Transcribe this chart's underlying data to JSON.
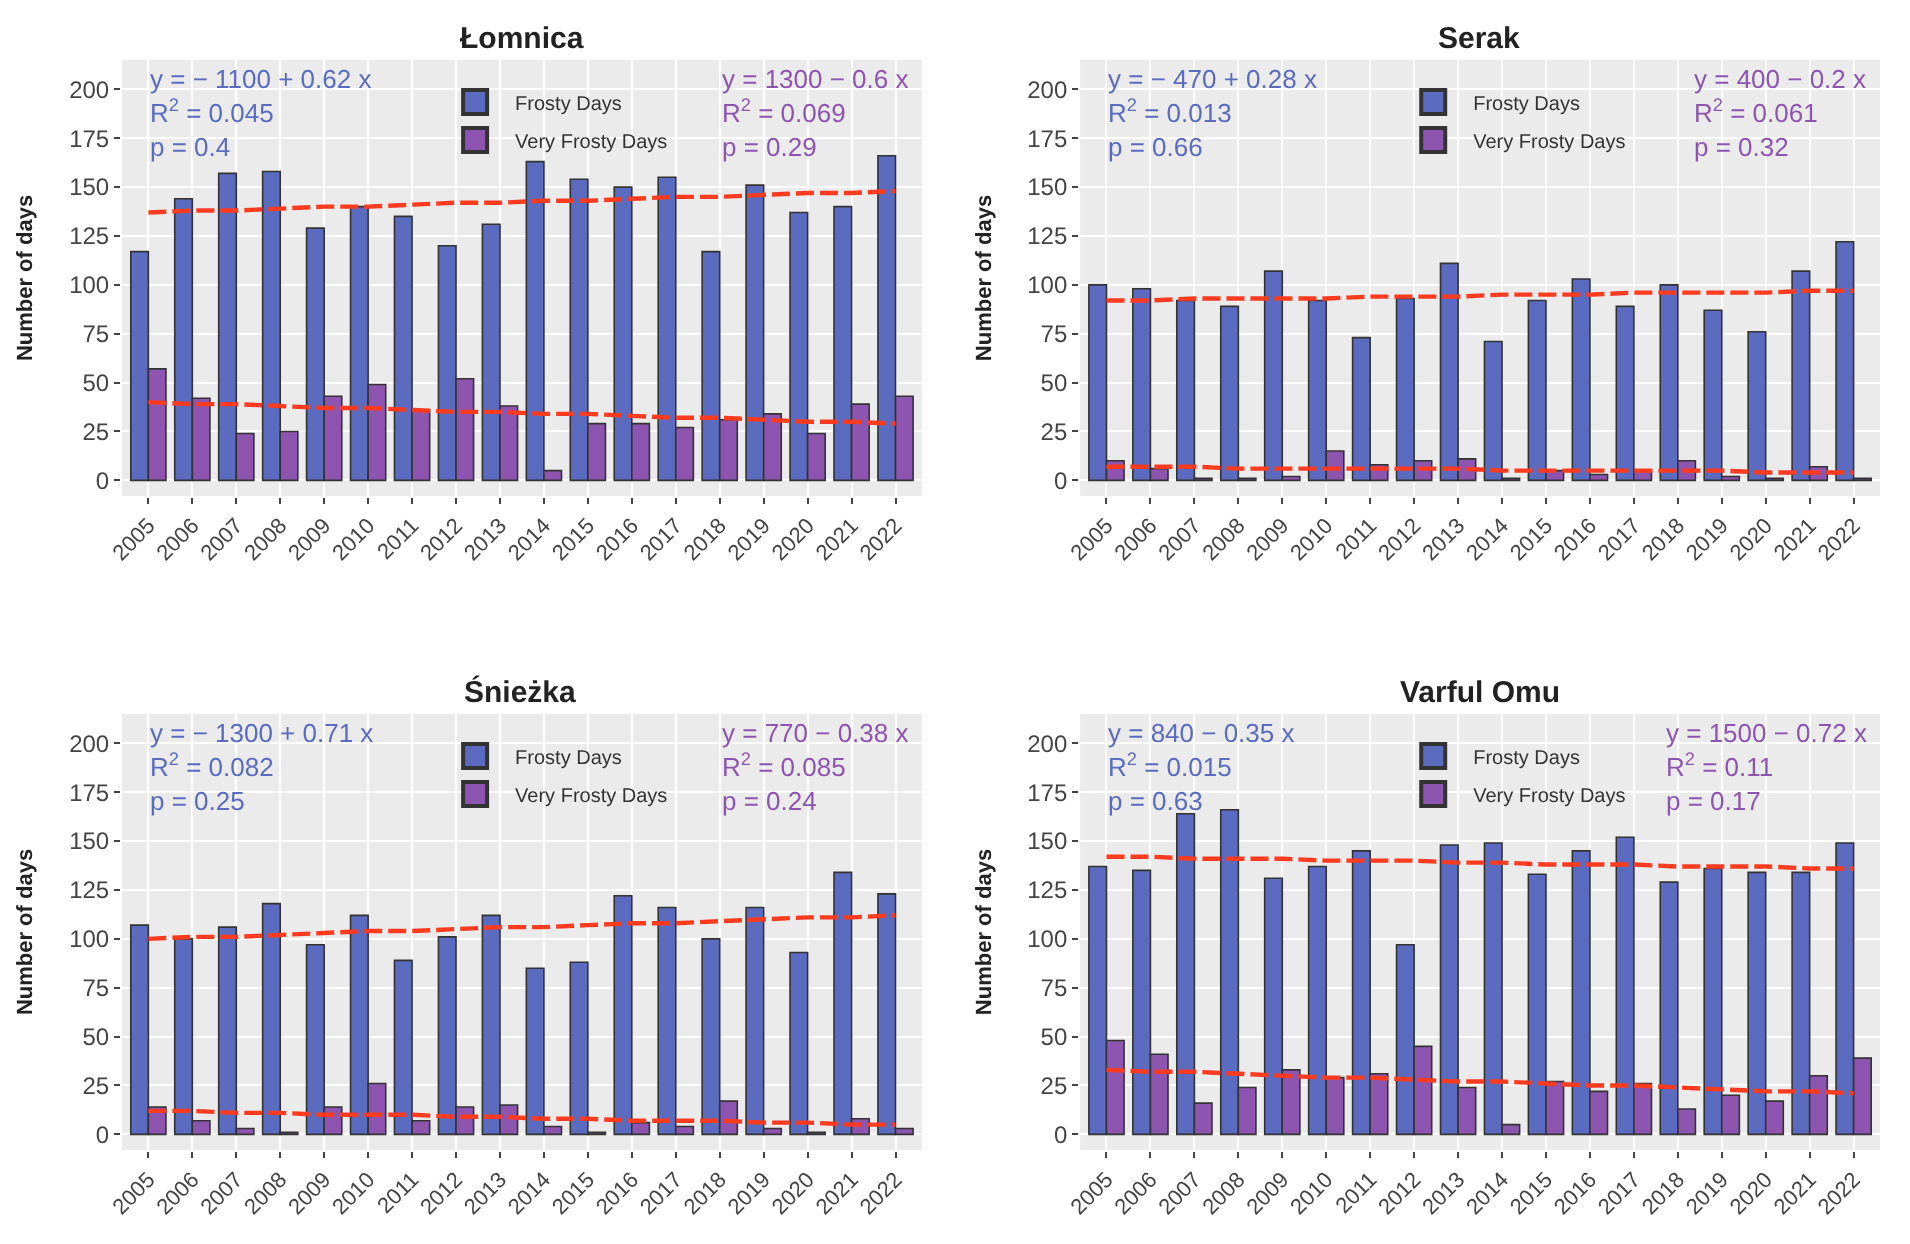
{
  "chart_data": [
    {
      "type": "bar",
      "title": "Łomnica",
      "ylabel": "Number of days",
      "x": [
        2005,
        2006,
        2007,
        2008,
        2009,
        2010,
        2011,
        2012,
        2013,
        2014,
        2015,
        2016,
        2017,
        2018,
        2019,
        2020,
        2021,
        2022
      ],
      "xlim": [
        2004.4,
        2022.6
      ],
      "xticks": [
        2005,
        2006,
        2007,
        2008,
        2009,
        2010,
        2011,
        2012,
        2013,
        2014,
        2015,
        2016,
        2017,
        2018,
        2019,
        2020,
        2021,
        2022
      ],
      "ylim": [
        -8,
        215
      ],
      "yticks": [
        0,
        25,
        50,
        75,
        100,
        125,
        150,
        175,
        200
      ],
      "grid": true,
      "legend": "top",
      "series": [
        {
          "name": "Frosty Days",
          "color": "#5b6bbf",
          "values": [
            117,
            144,
            157,
            158,
            129,
            140,
            135,
            120,
            131,
            163,
            154,
            150,
            155,
            117,
            151,
            137,
            140,
            166
          ]
        },
        {
          "name": "Very Frosty Days",
          "color": "#8e55b0",
          "values": [
            57,
            42,
            24,
            25,
            43,
            49,
            36,
            52,
            38,
            5,
            29,
            29,
            27,
            31,
            34,
            24,
            39,
            43
          ]
        },
        {
          "type": "line",
          "color": "#ff3b1f",
          "line_style": "dashed",
          "values": [
            137,
            138,
            138,
            139,
            140,
            140,
            141,
            142,
            142,
            143,
            143,
            144,
            145,
            145,
            146,
            147,
            147,
            148
          ]
        },
        {
          "type": "line",
          "color": "#ff3b1f",
          "line_style": "dashed",
          "values": [
            40,
            39,
            39,
            38,
            37,
            37,
            36,
            35,
            35,
            34,
            34,
            33,
            32,
            32,
            31,
            30,
            30,
            29
          ]
        }
      ],
      "annotations": [
        "y = − 1100 + 0.62 x\nR$^{2}$ = 0.045\np = 0.4",
        "y = 1300 − 0.6 x\nR$^{2}$ = 0.069\np = 0.29"
      ]
    },
    {
      "type": "bar",
      "title": "Serak",
      "ylabel": "Number of days",
      "x": [
        2005,
        2006,
        2007,
        2008,
        2009,
        2010,
        2011,
        2012,
        2013,
        2014,
        2015,
        2016,
        2017,
        2018,
        2019,
        2020,
        2021,
        2022
      ],
      "xlim": [
        2004.4,
        2022.6
      ],
      "xticks": [
        2005,
        2006,
        2007,
        2008,
        2009,
        2010,
        2011,
        2012,
        2013,
        2014,
        2015,
        2016,
        2017,
        2018,
        2019,
        2020,
        2021,
        2022
      ],
      "ylim": [
        -8,
        215
      ],
      "yticks": [
        0,
        25,
        50,
        75,
        100,
        125,
        150,
        175,
        200
      ],
      "grid": true,
      "legend": "top",
      "series": [
        {
          "name": "Frosty Days",
          "color": "#5b6bbf",
          "values": [
            100,
            98,
            92,
            89,
            107,
            92,
            73,
            93,
            111,
            71,
            92,
            103,
            89,
            100,
            87,
            76,
            107,
            122
          ]
        },
        {
          "name": "Very Frosty Days",
          "color": "#8e55b0",
          "values": [
            10,
            6,
            1,
            1,
            2,
            15,
            8,
            10,
            11,
            1,
            5,
            3,
            5,
            10,
            2,
            1,
            7,
            1
          ]
        },
        {
          "type": "line",
          "color": "#ff3b1f",
          "line_style": "dashed",
          "values": [
            92,
            92,
            93,
            93,
            93,
            93,
            94,
            94,
            94,
            95,
            95,
            95,
            96,
            96,
            96,
            96,
            97,
            97
          ]
        },
        {
          "type": "line",
          "color": "#ff3b1f",
          "line_style": "dashed",
          "values": [
            7,
            7,
            7,
            6,
            6,
            6,
            6,
            6,
            6,
            5,
            5,
            5,
            5,
            5,
            5,
            4,
            4,
            4
          ]
        }
      ],
      "annotations": [
        "y = − 470 + 0.28 x\nR$^{2}$ = 0.013\np = 0.66",
        "y = 400 − 0.2 x\nR$^{2}$ = 0.061\np = 0.32"
      ]
    },
    {
      "type": "bar",
      "title": "Śnieżka",
      "ylabel": "Number of days",
      "x": [
        2005,
        2006,
        2007,
        2008,
        2009,
        2010,
        2011,
        2012,
        2013,
        2014,
        2015,
        2016,
        2017,
        2018,
        2019,
        2020,
        2021,
        2022
      ],
      "xlim": [
        2004.4,
        2022.6
      ],
      "xticks": [
        2005,
        2006,
        2007,
        2008,
        2009,
        2010,
        2011,
        2012,
        2013,
        2014,
        2015,
        2016,
        2017,
        2018,
        2019,
        2020,
        2021,
        2022
      ],
      "ylim": [
        -8,
        215
      ],
      "yticks": [
        0,
        25,
        50,
        75,
        100,
        125,
        150,
        175,
        200
      ],
      "grid": true,
      "legend": "top",
      "series": [
        {
          "name": "Frosty Days",
          "color": "#5b6bbf",
          "values": [
            107,
            100,
            106,
            118,
            97,
            112,
            89,
            101,
            112,
            85,
            88,
            122,
            116,
            100,
            116,
            93,
            134,
            123
          ]
        },
        {
          "name": "Very Frosty Days",
          "color": "#8e55b0",
          "values": [
            14,
            7,
            3,
            1,
            14,
            26,
            7,
            14,
            15,
            4,
            1,
            6,
            4,
            17,
            3,
            1,
            8,
            3
          ]
        },
        {
          "type": "line",
          "color": "#ff3b1f",
          "line_style": "dashed",
          "values": [
            100,
            101,
            101,
            102,
            103,
            104,
            104,
            105,
            106,
            106,
            107,
            108,
            108,
            109,
            110,
            111,
            111,
            112
          ]
        },
        {
          "type": "line",
          "color": "#ff3b1f",
          "line_style": "dashed",
          "values": [
            12,
            12,
            11,
            11,
            10,
            10,
            10,
            9,
            9,
            8,
            8,
            7,
            7,
            7,
            6,
            6,
            5,
            5
          ]
        }
      ],
      "annotations": [
        "y = − 1300 + 0.71 x\nR$^{2}$ = 0.082\np = 0.25",
        "y = 770 − 0.38 x\nR$^{2}$ = 0.085\np = 0.24"
      ]
    },
    {
      "type": "bar",
      "title": "Varful Omu",
      "ylabel": "Number of days",
      "x": [
        2005,
        2006,
        2007,
        2008,
        2009,
        2010,
        2011,
        2012,
        2013,
        2014,
        2015,
        2016,
        2017,
        2018,
        2019,
        2020,
        2021,
        2022
      ],
      "xlim": [
        2004.4,
        2022.6
      ],
      "xticks": [
        2005,
        2006,
        2007,
        2008,
        2009,
        2010,
        2011,
        2012,
        2013,
        2014,
        2015,
        2016,
        2017,
        2018,
        2019,
        2020,
        2021,
        2022
      ],
      "ylim": [
        -8,
        215
      ],
      "yticks": [
        0,
        25,
        50,
        75,
        100,
        125,
        150,
        175,
        200
      ],
      "grid": true,
      "legend": "top",
      "series": [
        {
          "name": "Frosty Days",
          "color": "#5b6bbf",
          "values": [
            137,
            135,
            164,
            166,
            131,
            137,
            145,
            97,
            148,
            149,
            133,
            145,
            152,
            129,
            136,
            134,
            134,
            149
          ]
        },
        {
          "name": "Very Frosty Days",
          "color": "#8e55b0",
          "values": [
            48,
            41,
            16,
            24,
            33,
            29,
            31,
            45,
            24,
            5,
            27,
            22,
            26,
            13,
            20,
            17,
            30,
            39
          ]
        },
        {
          "type": "line",
          "color": "#ff3b1f",
          "line_style": "dashed",
          "values": [
            142,
            142,
            141,
            141,
            141,
            140,
            140,
            140,
            139,
            139,
            138,
            138,
            138,
            137,
            137,
            137,
            136,
            136
          ]
        },
        {
          "type": "line",
          "color": "#ff3b1f",
          "line_style": "dashed",
          "values": [
            33,
            32,
            32,
            31,
            30,
            29,
            29,
            28,
            27,
            27,
            26,
            25,
            25,
            24,
            23,
            22,
            22,
            21
          ]
        }
      ],
      "annotations": [
        "y = 840 − 0.35 x\nR$^{2}$ = 0.015\np = 0.63",
        "y = 1500 − 0.72 x\nR$^{2}$ = 0.11\np = 0.17"
      ]
    }
  ]
}
